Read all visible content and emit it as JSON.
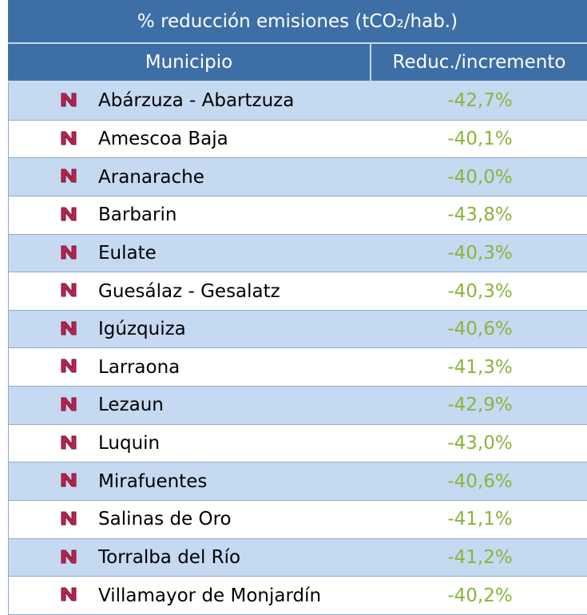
{
  "table": {
    "title": "% reducción emisiones (tCO₂/hab.)",
    "headers": [
      "Municipio",
      "Reduc./incremento"
    ],
    "rows": [
      [
        "Abárzuza - Abartzuza",
        "-42,7%"
      ],
      [
        "Amescoa Baja",
        "-40,1%"
      ],
      [
        "Aranarache",
        "-40,0%"
      ],
      [
        "Barbarin",
        "-43,8%"
      ],
      [
        "Eulate",
        "-40,3%"
      ],
      [
        "Guesálaz - Gesalatz",
        "-40,3%"
      ],
      [
        "Igúzquiza",
        "-40,6%"
      ],
      [
        "Larraona",
        "-41,3%"
      ],
      [
        "Lezaun",
        "-42,9%"
      ],
      [
        "Luquin",
        "-43,0%"
      ],
      [
        "Mirafuentes",
        "-40,6%"
      ],
      [
        "Salinas de Oro",
        "-41,1%"
      ],
      [
        "Torralba del Río",
        "-41,2%"
      ],
      [
        "Villamayor de Monjardín",
        "-40,2%"
      ]
    ]
  }
}
